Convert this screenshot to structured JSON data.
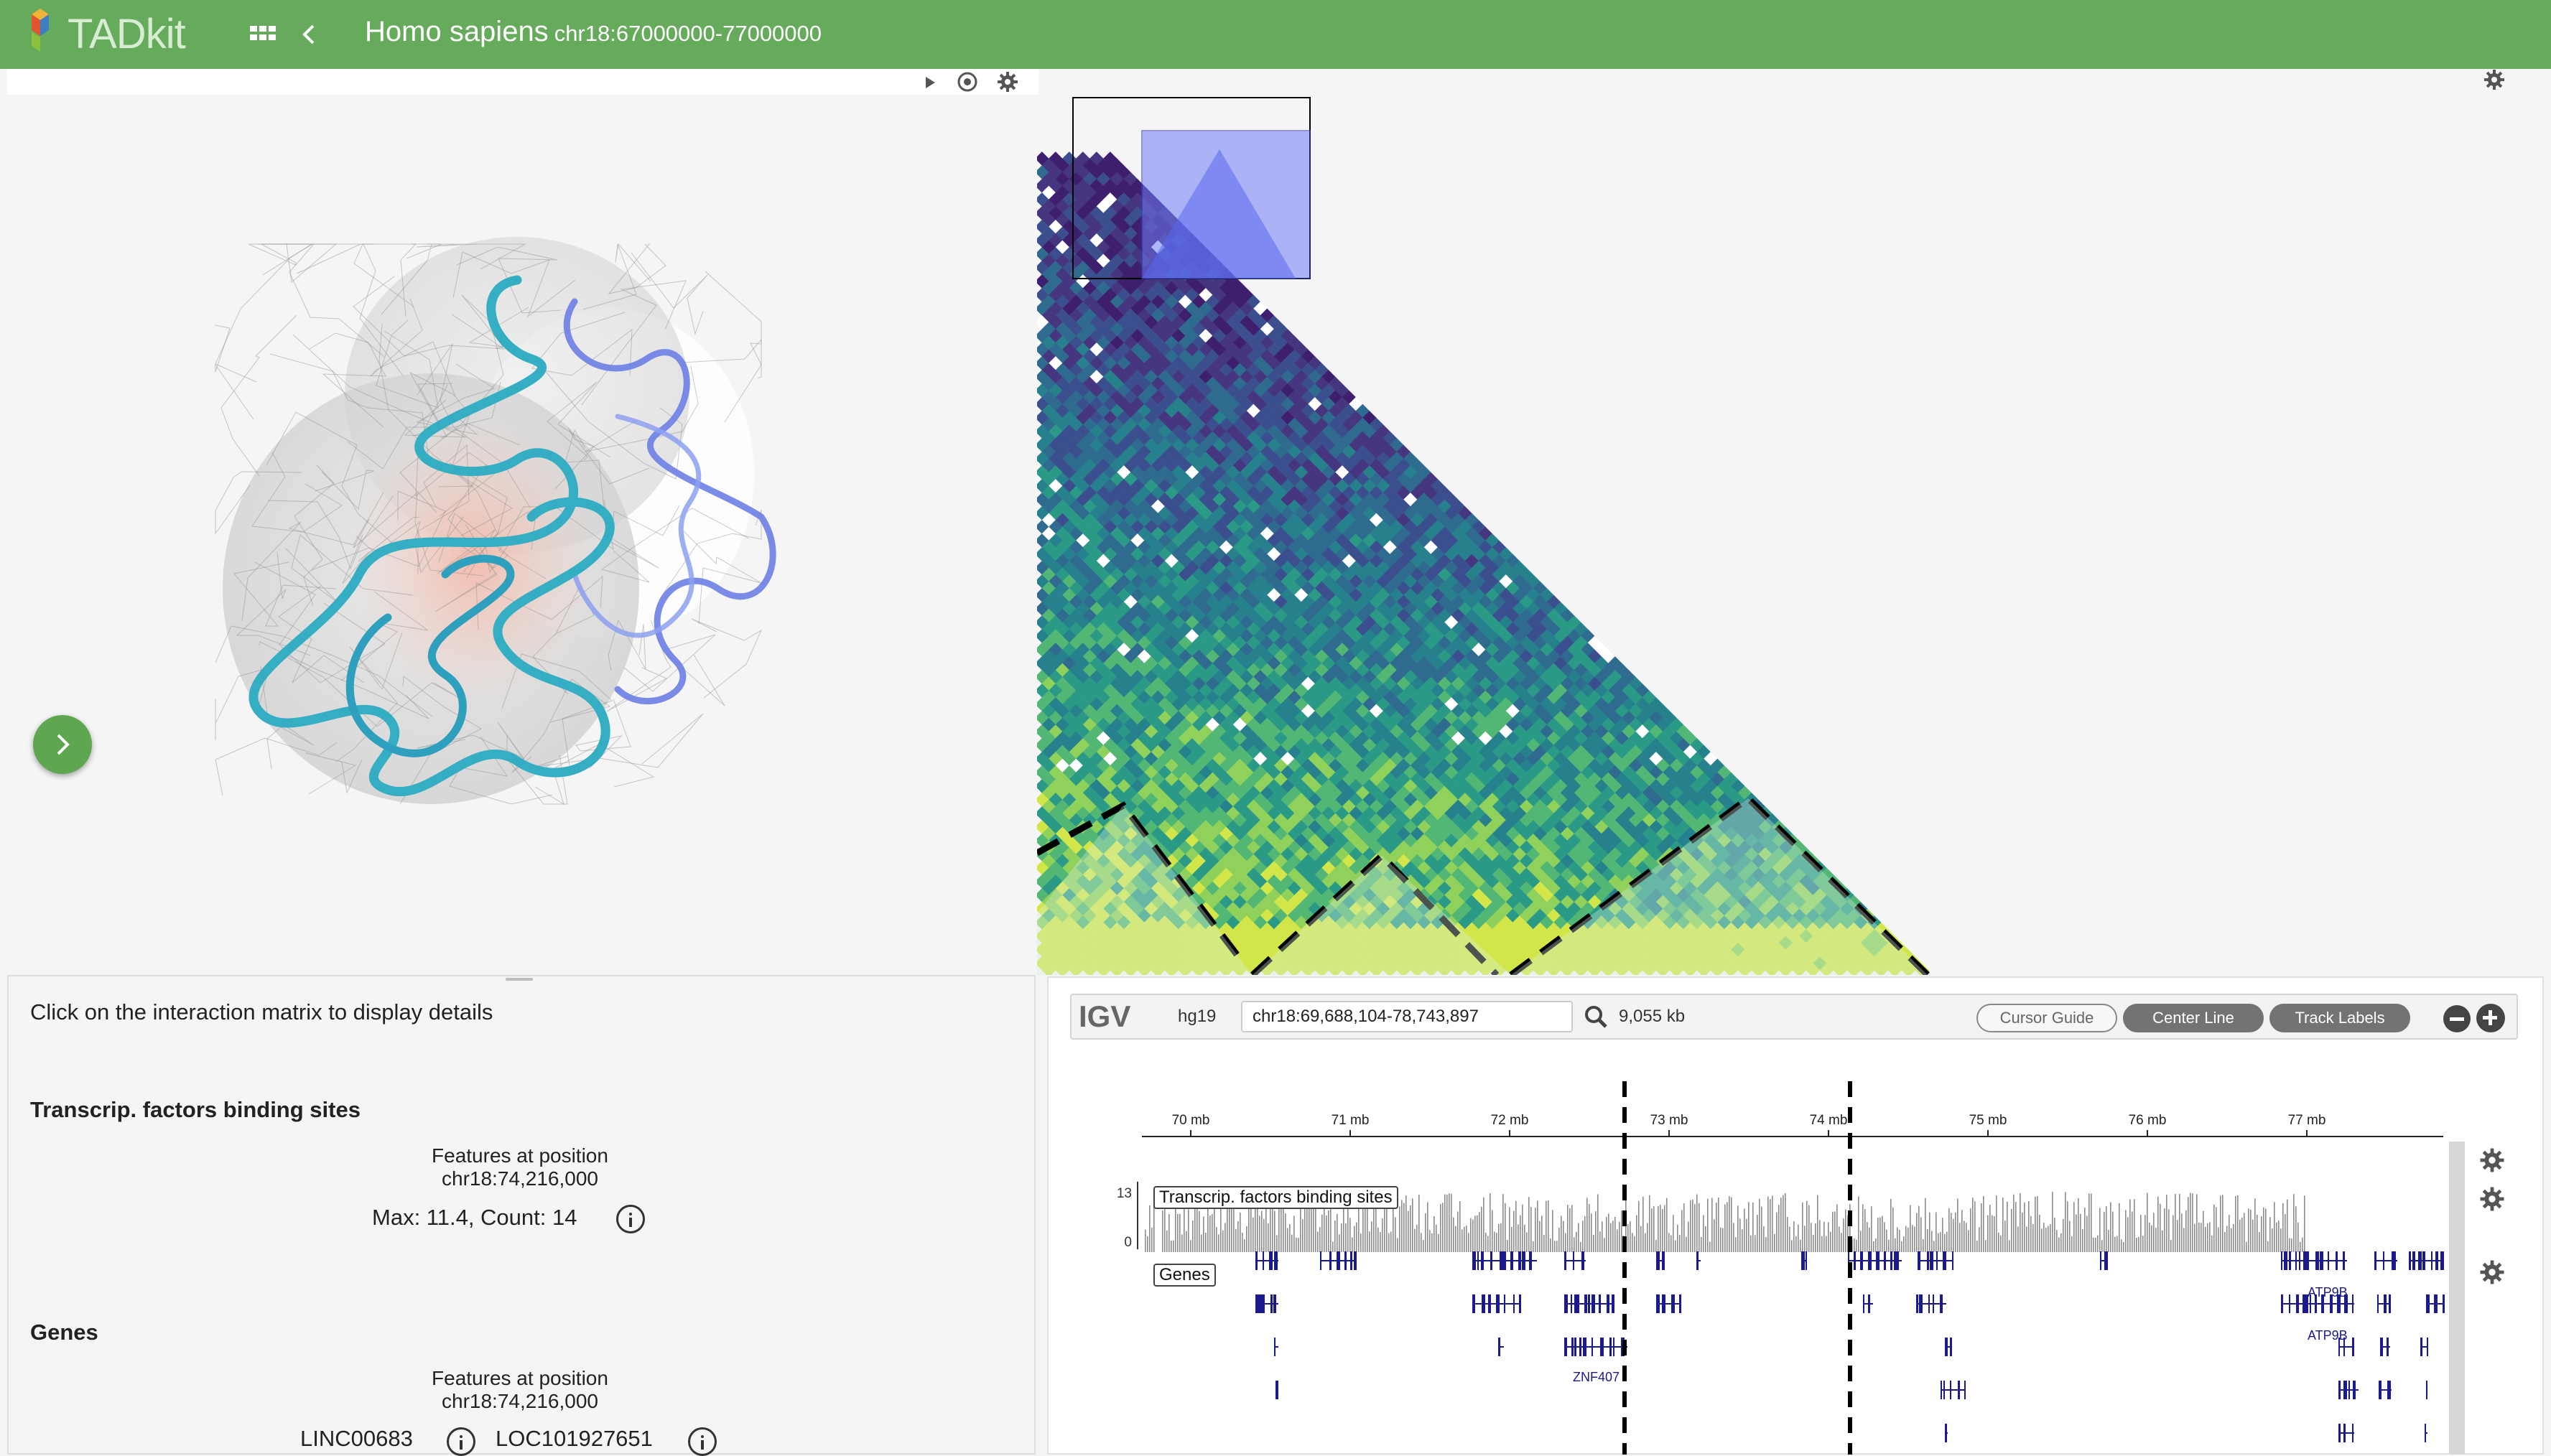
{
  "header": {
    "logo_text": "TADkit",
    "species": "Homo sapiens",
    "locus": "chr18:67000000-77000000",
    "bg_color": "#66ab5b"
  },
  "toolbar_3d": {
    "icons": [
      "play-icon",
      "target-icon",
      "gear-icon"
    ]
  },
  "detail": {
    "instruction": "Click on the interaction matrix to display details",
    "tf_section": {
      "title": "Transcrip. factors binding sites",
      "features_label": "Features at position",
      "position": "chr18:74,216,000",
      "summary": "Max: 11.4, Count: 14"
    },
    "genes_section": {
      "title": "Genes",
      "features_label": "Features at position",
      "position": "chr18:74,216,000",
      "genes": [
        "LINC00683",
        "LOC101927651"
      ]
    }
  },
  "igv": {
    "logo": "IGV",
    "genome": "hg19",
    "locus": "chr18:69,688,104-78,743,897",
    "width": "9,055 kb",
    "buttons": {
      "cursor_guide": "Cursor Guide",
      "center_line": "Center Line",
      "track_labels": "Track Labels"
    },
    "ruler_ticks": [
      "70 mb",
      "71 mb",
      "72 mb",
      "73 mb",
      "74 mb",
      "75 mb",
      "76 mb",
      "77 mb"
    ],
    "tf_track": {
      "label": "Transcrip. factors binding sites",
      "max": "13",
      "min": "0"
    },
    "genes_track": {
      "label": "Genes",
      "gene_labels": [
        "ATP9B",
        "ATP9B",
        "ZNF407"
      ]
    }
  },
  "colors": {
    "accent": "#66ab5b",
    "model_cyan": "#3fb8c9",
    "model_blue": "#5b6fe0",
    "gene_navy": "#1a1a8c",
    "selection": "#6f7cf5"
  }
}
